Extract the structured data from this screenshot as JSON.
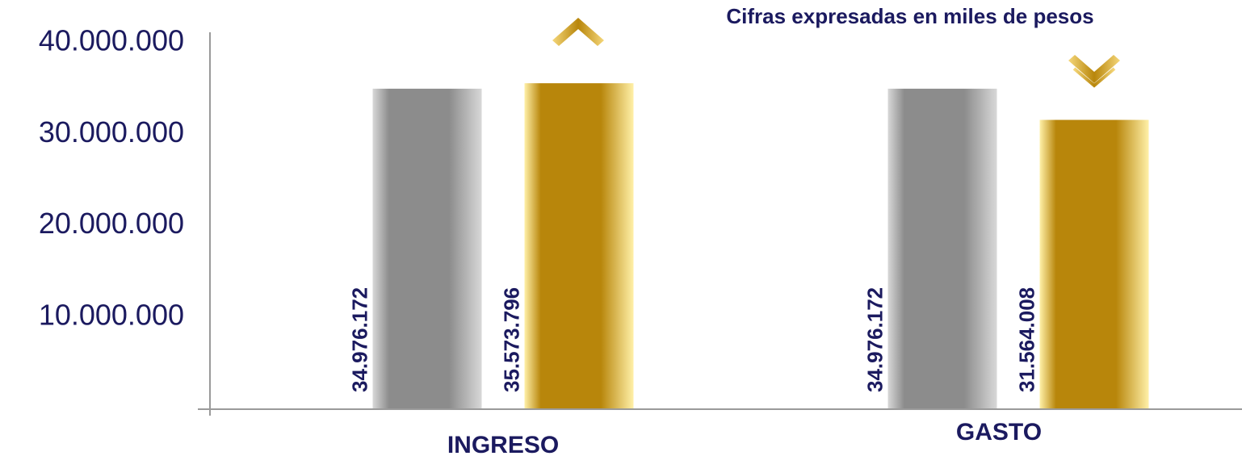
{
  "chart_data": {
    "type": "bar",
    "subtitle": "Cifras expresadas en miles de pesos",
    "categories": [
      "INGRESO",
      "GASTO"
    ],
    "series": [
      {
        "color": "#8c8c8c",
        "values": [
          34976172,
          34976172
        ],
        "value_labels": [
          "34.976.172",
          "34.976.172"
        ]
      },
      {
        "color": "#b8860b",
        "values": [
          35573796,
          31564008
        ],
        "value_labels": [
          "35.573.796",
          "31.564.008"
        ]
      }
    ],
    "ylim": [
      0,
      40000000
    ],
    "yticks": [
      {
        "value": 10000000,
        "label": "10.000.000"
      },
      {
        "value": 20000000,
        "label": "20.000.000"
      },
      {
        "value": 30000000,
        "label": "30.000.000"
      },
      {
        "value": 40000000,
        "label": "40.000.000"
      }
    ]
  }
}
